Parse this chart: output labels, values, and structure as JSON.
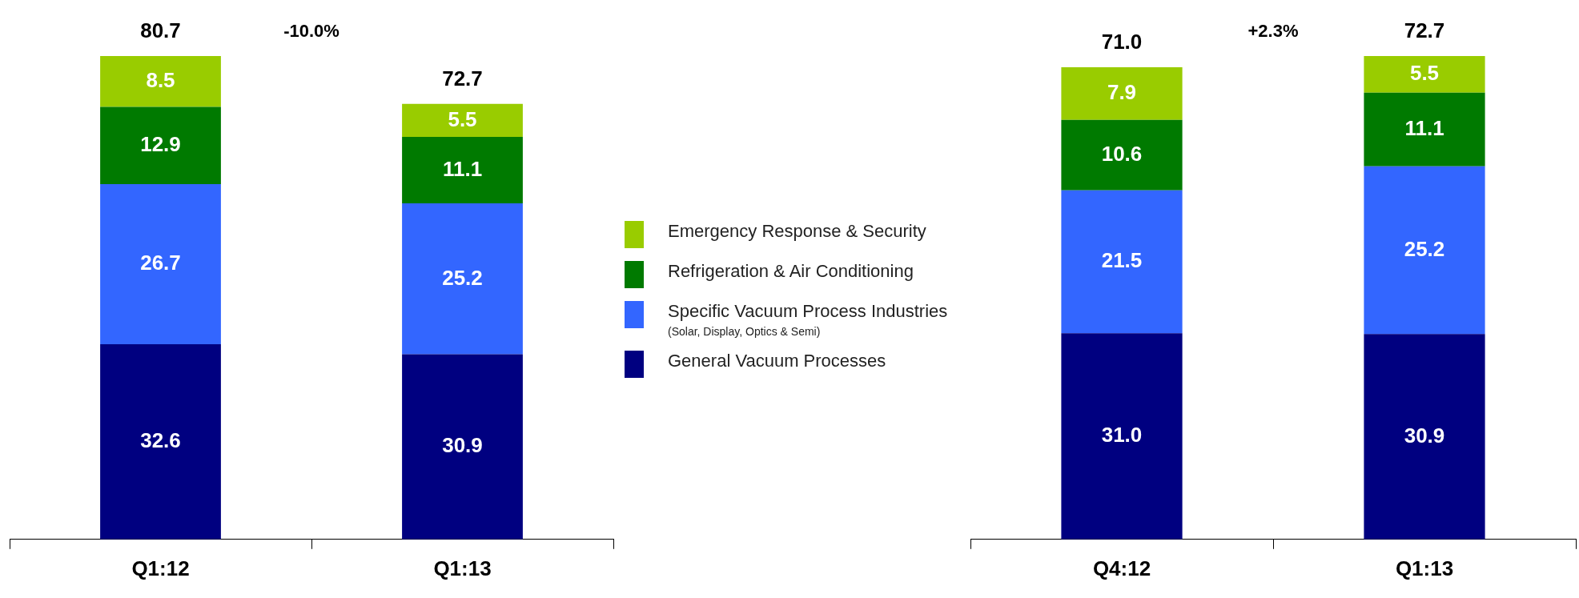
{
  "chart_data": [
    {
      "type": "bar",
      "stacked": true,
      "categories": [
        "Q1:12",
        "Q1:13"
      ],
      "data_labels": true,
      "legend": "right",
      "grid": false,
      "series": [
        {
          "name": "General Vacuum Processes",
          "color": "#000080",
          "values": [
            32.6,
            30.9
          ]
        },
        {
          "name": "Specific Vacuum Process Industries\n(Solar, Display, Optics & Semi)",
          "color": "#3366ff",
          "values": [
            26.7,
            25.2
          ]
        },
        {
          "name": "Refrigeration & Air Conditioning",
          "color": "#007a00",
          "values": [
            12.9,
            11.1
          ]
        },
        {
          "name": "Emergency Response & Security",
          "color": "#99cc00",
          "values": [
            8.5,
            5.5
          ]
        }
      ],
      "totals": [
        "80.7",
        "72.7"
      ],
      "annotations": [
        "-10.0%"
      ]
    },
    {
      "type": "bar",
      "stacked": true,
      "categories": [
        "Q4:12",
        "Q1:13"
      ],
      "data_labels": true,
      "legend": false,
      "grid": false,
      "series": [
        {
          "color": "#000080",
          "values": [
            31.0,
            30.9
          ],
          "value_labels": [
            "31.0",
            "30.9"
          ]
        },
        {
          "color": "#3366ff",
          "values": [
            21.5,
            25.2
          ]
        },
        {
          "color": "#007a00",
          "values": [
            10.6,
            11.1
          ]
        },
        {
          "color": "#99cc00",
          "values": [
            7.9,
            5.5
          ]
        }
      ],
      "totals": [
        "71.0",
        "72.7"
      ],
      "annotations": [
        "+2.3%"
      ]
    }
  ]
}
